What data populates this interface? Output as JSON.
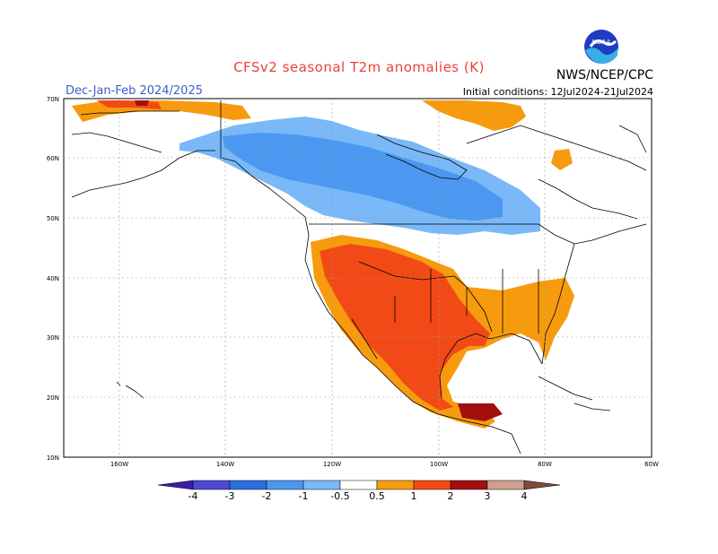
{
  "header": {
    "title": "CFSv2 seasonal T2m anomalies (K)",
    "season": "Dec-Jan-Feb 2024/2025",
    "initial_conditions": "Initial conditions: 12Jul2024-21Jul2024",
    "agency": "NWS/NCEP/CPC",
    "logo_text": "NOAA"
  },
  "map": {
    "lat_labels": [
      "70N",
      "60N",
      "50N",
      "40N",
      "30N",
      "20N",
      "10N"
    ],
    "lon_labels": [
      "160W",
      "140W",
      "120W",
      "100W",
      "80W",
      "60W"
    ]
  },
  "colorbar": {
    "labels": [
      "-4",
      "-3",
      "-2",
      "-1",
      "-0.5",
      "0.5",
      "1",
      "2",
      "3",
      "4"
    ],
    "colors": [
      "#3b1cac",
      "#4c49d5",
      "#2a6fe0",
      "#4c98f0",
      "#7ab8f8",
      "#ffffff",
      "#f79b0e",
      "#f24a16",
      "#a1100e",
      "#cfa08d",
      "#7d4a3c"
    ]
  },
  "anomaly_colors": {
    "warm_0_5": "#f79b0e",
    "warm_1": "#f24a16",
    "warm_2": "#a1100e",
    "cool_0_5": "#7ab8f8",
    "cool_1": "#4c98f0"
  }
}
